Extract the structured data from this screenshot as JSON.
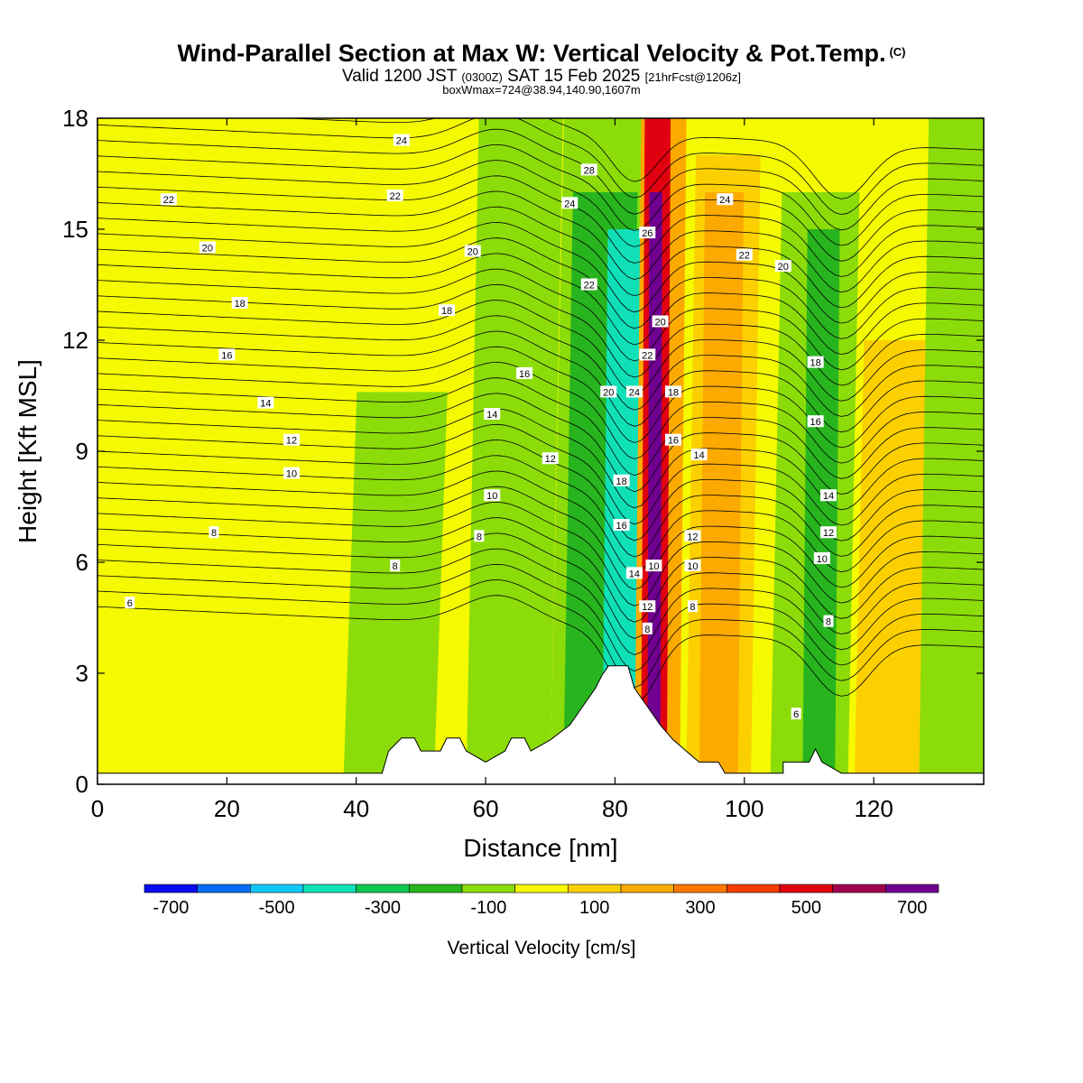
{
  "header": {
    "title_main": "Wind-Parallel Section at Max W: Vertical Velocity & Pot.Temp.",
    "title_copyright": "(C)",
    "valid_prefix": "Valid 1200 JST",
    "valid_utc": "(0300Z)",
    "valid_date": "SAT 15 Feb 2025",
    "valid_fcst": "[21hrFcst@1206z]",
    "boxwmax": "boxWmax=724@38.94,140.90,1607m"
  },
  "chart_data": {
    "type": "heatmap",
    "xlabel": "Distance [nm]",
    "ylabel": "Height [Kft MSL]",
    "xlim": [
      0,
      137
    ],
    "ylim": [
      0,
      18
    ],
    "x_ticks": [
      0,
      20,
      40,
      60,
      80,
      100,
      120
    ],
    "y_ticks": [
      0,
      3,
      6,
      9,
      12,
      15,
      18
    ],
    "colorbar": {
      "title": "Vertical Velocity [cm/s]",
      "bounds": [
        -800,
        -700,
        -600,
        -500,
        -400,
        -300,
        -200,
        -100,
        0,
        100,
        200,
        300,
        400,
        500,
        600,
        700,
        800
      ],
      "tick_labels": [
        "-700",
        "-500",
        "-300",
        "-100",
        "100",
        "300",
        "500",
        "700"
      ],
      "colors": [
        "#0a0af0",
        "#0a6ef5",
        "#10c8f8",
        "#10e0b8",
        "#10c850",
        "#28b41e",
        "#8cdc0a",
        "#f5fa00",
        "#fcd000",
        "#fcaa00",
        "#fc7800",
        "#f83c00",
        "#e00010",
        "#a00050",
        "#700090"
      ]
    },
    "background_fill": "#f5fa00",
    "fill_bands": [
      {
        "name": "green-broad-left",
        "x": [
          38,
          52
        ],
        "ytop": 10.6,
        "color": "#8cdc0a"
      },
      {
        "name": "green-mid",
        "x": [
          57,
          70
        ],
        "ytop": 18,
        "color": "#8cdc0a"
      },
      {
        "name": "green-main",
        "x": [
          70,
          84
        ],
        "ytop": 18,
        "color": "#8cdc0a"
      },
      {
        "name": "green-dark-main",
        "x": [
          72,
          82
        ],
        "ytop": 16,
        "color": "#28b41e"
      },
      {
        "name": "cyan-downdraft",
        "x": [
          78,
          84
        ],
        "ytop": 15,
        "color": "#10e0b8"
      },
      {
        "name": "updraft-core-orange",
        "x": [
          83,
          90
        ],
        "ytop": 18,
        "color": "#fcaa00"
      },
      {
        "name": "updraft-core-red",
        "x": [
          84,
          88
        ],
        "ytop": 18,
        "color": "#e00010"
      },
      {
        "name": "updraft-core-purple",
        "x": [
          85,
          87
        ],
        "ytop": 16,
        "color": "#700090"
      },
      {
        "name": "orange-right-1",
        "x": [
          91,
          101
        ],
        "ytop": 17,
        "color": "#fcd000"
      },
      {
        "name": "orange-right-2",
        "x": [
          93,
          99
        ],
        "ytop": 16,
        "color": "#fcaa00"
      },
      {
        "name": "green-right-1",
        "x": [
          104,
          116
        ],
        "ytop": 16,
        "color": "#8cdc0a"
      },
      {
        "name": "green-right-dark",
        "x": [
          109,
          114
        ],
        "ytop": 15,
        "color": "#28b41e"
      },
      {
        "name": "yellow-right-lobe",
        "x": [
          117,
          127
        ],
        "ytop": 12,
        "color": "#fcd000"
      },
      {
        "name": "green-right-2",
        "x": [
          127,
          137
        ],
        "ytop": 18,
        "color": "#8cdc0a"
      }
    ],
    "terrain": [
      [
        0,
        0.3
      ],
      [
        44,
        0.3
      ],
      [
        45,
        0.9
      ],
      [
        47,
        1.25
      ],
      [
        49,
        1.25
      ],
      [
        50,
        0.9
      ],
      [
        53,
        0.9
      ],
      [
        54,
        1.25
      ],
      [
        56,
        1.25
      ],
      [
        57,
        0.9
      ],
      [
        60,
        0.6
      ],
      [
        63,
        0.9
      ],
      [
        64,
        1.25
      ],
      [
        66,
        1.25
      ],
      [
        67,
        0.9
      ],
      [
        70,
        1.2
      ],
      [
        73,
        1.6
      ],
      [
        75,
        2.1
      ],
      [
        77,
        2.6
      ],
      [
        78,
        2.95
      ],
      [
        79,
        3.2
      ],
      [
        82,
        3.2
      ],
      [
        83,
        2.6
      ],
      [
        85,
        2.1
      ],
      [
        87,
        1.6
      ],
      [
        89,
        1.2
      ],
      [
        91,
        0.9
      ],
      [
        93,
        0.6
      ],
      [
        96,
        0.6
      ],
      [
        97,
        0.3
      ],
      [
        106,
        0.3
      ],
      [
        106,
        0.6
      ],
      [
        110,
        0.6
      ],
      [
        111,
        0.95
      ],
      [
        112,
        0.6
      ],
      [
        115,
        0.3
      ],
      [
        137,
        0.3
      ]
    ],
    "theta_contours": {
      "left_start_values": [
        6,
        8,
        10,
        12,
        14,
        16,
        18,
        20,
        22,
        24
      ],
      "levels": [
        6,
        8,
        10,
        12,
        14,
        16,
        18,
        20,
        22,
        24,
        26
      ],
      "labels": [
        {
          "text": "24",
          "x": 47,
          "y": 17.4
        },
        {
          "text": "22",
          "x": 11,
          "y": 15.8
        },
        {
          "text": "22",
          "x": 46,
          "y": 15.9
        },
        {
          "text": "20",
          "x": 17,
          "y": 14.5
        },
        {
          "text": "20",
          "x": 58,
          "y": 14.4
        },
        {
          "text": "18",
          "x": 22,
          "y": 13.0
        },
        {
          "text": "18",
          "x": 54,
          "y": 12.8
        },
        {
          "text": "16",
          "x": 20,
          "y": 11.6
        },
        {
          "text": "16",
          "x": 66,
          "y": 11.1
        },
        {
          "text": "14",
          "x": 26,
          "y": 10.3
        },
        {
          "text": "14",
          "x": 61,
          "y": 10.0
        },
        {
          "text": "12",
          "x": 30,
          "y": 9.3
        },
        {
          "text": "12",
          "x": 70,
          "y": 8.8
        },
        {
          "text": "10",
          "x": 30,
          "y": 8.4
        },
        {
          "text": "10",
          "x": 61,
          "y": 7.8
        },
        {
          "text": "8",
          "x": 18,
          "y": 6.8
        },
        {
          "text": "8",
          "x": 59,
          "y": 6.7
        },
        {
          "text": "8",
          "x": 46,
          "y": 5.9
        },
        {
          "text": "6",
          "x": 5,
          "y": 4.9
        },
        {
          "text": "28",
          "x": 76,
          "y": 16.6
        },
        {
          "text": "24",
          "x": 73,
          "y": 15.7
        },
        {
          "text": "22",
          "x": 76,
          "y": 13.5
        },
        {
          "text": "26",
          "x": 85,
          "y": 14.9
        },
        {
          "text": "20",
          "x": 87,
          "y": 12.5
        },
        {
          "text": "22",
          "x": 85,
          "y": 11.6
        },
        {
          "text": "24",
          "x": 83,
          "y": 10.6
        },
        {
          "text": "20",
          "x": 79,
          "y": 10.6
        },
        {
          "text": "18",
          "x": 89,
          "y": 10.6
        },
        {
          "text": "18",
          "x": 81,
          "y": 8.2
        },
        {
          "text": "16",
          "x": 89,
          "y": 9.3
        },
        {
          "text": "16",
          "x": 81,
          "y": 7.0
        },
        {
          "text": "14",
          "x": 83,
          "y": 5.7
        },
        {
          "text": "14",
          "x": 93,
          "y": 8.9
        },
        {
          "text": "10",
          "x": 86,
          "y": 5.9
        },
        {
          "text": "12",
          "x": 85,
          "y": 4.8
        },
        {
          "text": "8",
          "x": 85,
          "y": 4.2
        },
        {
          "text": "12",
          "x": 92,
          "y": 6.7
        },
        {
          "text": "10",
          "x": 92,
          "y": 5.9
        },
        {
          "text": "8",
          "x": 92,
          "y": 4.8
        },
        {
          "text": "24",
          "x": 97,
          "y": 15.8
        },
        {
          "text": "22",
          "x": 100,
          "y": 14.3
        },
        {
          "text": "20",
          "x": 106,
          "y": 14.0
        },
        {
          "text": "18",
          "x": 111,
          "y": 11.4
        },
        {
          "text": "16",
          "x": 111,
          "y": 9.8
        },
        {
          "text": "14",
          "x": 113,
          "y": 7.8
        },
        {
          "text": "12",
          "x": 113,
          "y": 6.8
        },
        {
          "text": "10",
          "x": 112,
          "y": 6.1
        },
        {
          "text": "8",
          "x": 113,
          "y": 4.4
        },
        {
          "text": "6",
          "x": 108,
          "y": 1.9
        }
      ]
    }
  }
}
